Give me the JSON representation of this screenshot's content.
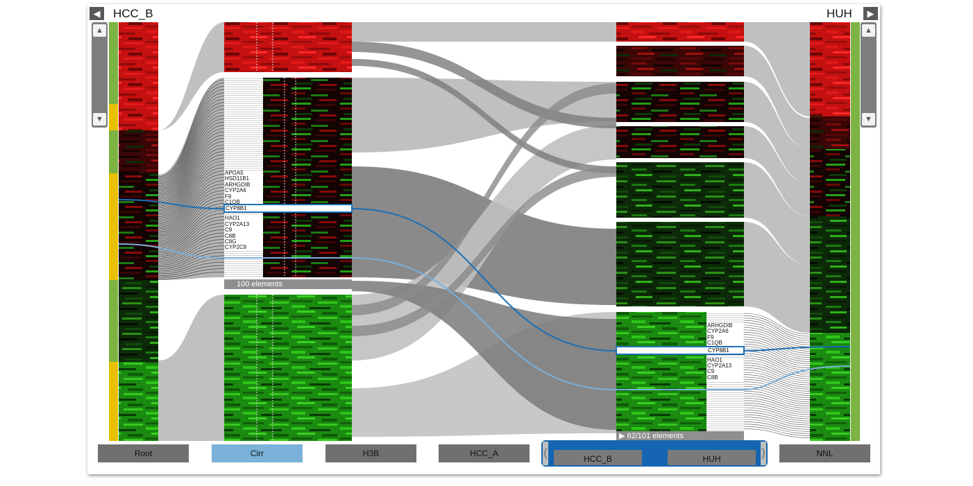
{
  "left_panel": {
    "title": "HCC_B",
    "prev_icon": "left-arrow-icon"
  },
  "right_panel": {
    "title": "HUH",
    "next_icon": "right-arrow-icon"
  },
  "scroll": {
    "up_icon": "up-arrow-icon",
    "down_icon": "down-arrow-icon"
  },
  "cluster_left": {
    "element_label": "100 elements",
    "genes": [
      "APOA5",
      "HSD11B1",
      "ARHGDIB",
      "CYP2A6",
      "F9",
      "C1QB",
      "CYP8B1",
      "HAO1",
      "CYP2A13",
      "C9",
      "C8B",
      "C8G",
      "CYP2C9"
    ],
    "selected_gene": "CYP8B1"
  },
  "cluster_right": {
    "element_label": "▶ 62/101 elements",
    "genes": [
      "ARHGDIB",
      "CYP2A6",
      "F9",
      "C1QB",
      "CYP8B1",
      "HAO1",
      "CYP2A13",
      "C9",
      "C8B"
    ],
    "selected_gene": "CYP8B1"
  },
  "tabs": {
    "root": "Root",
    "cirr": "Cirr",
    "h3b": "H3B",
    "hcc_a": "HCC_A",
    "hcc_b": "HCC_B",
    "huh": "HUH",
    "nnl": "NNL"
  },
  "colors": {
    "accent": "#1565b2",
    "highlight_light": "#7ab2d9",
    "cluster_yellow": "#e8c000",
    "cluster_green": "#7cb342",
    "ribbon": "#bdbdbd",
    "ribbon_dark": "#7a7a7a"
  }
}
